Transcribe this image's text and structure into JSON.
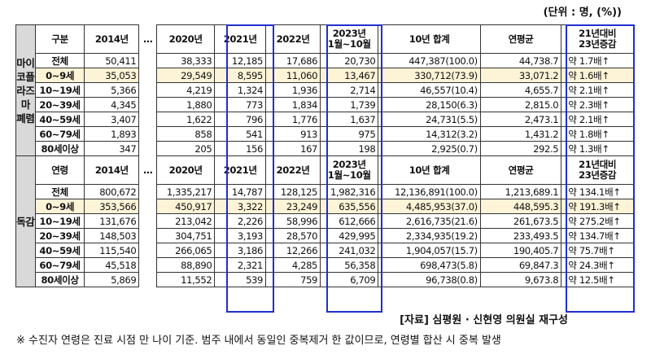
{
  "unit_note": "(단위 : 명, (%))",
  "headers": {
    "c2014": "2014년",
    "c2020": "2020년",
    "c2021": "2021년",
    "c2022": "2022년",
    "c2023_a": "2023년",
    "c2023_b": "1월~10월",
    "total": "10년 합계",
    "avg": "연평균",
    "inc_a": "21년대비",
    "inc_b": "23년증감",
    "ellipsis": "…"
  },
  "section1": {
    "side_label": "마이코플라즈마 폐렴",
    "head_label": "구분",
    "rows": [
      {
        "label": "전체",
        "v2014": "50,411",
        "v2020": "38,333",
        "v2021": "12,185",
        "v2022": "17,686",
        "v2023": "20,730",
        "total": "447,387(100.0)",
        "avg": "44,738.7",
        "inc": "약  1.7배↑"
      },
      {
        "label": "0~9세",
        "v2014": "35,053",
        "v2020": "29,549",
        "v2021": "8,595",
        "v2022": "11,060",
        "v2023": "13,467",
        "total": "330,712(73.9)",
        "avg": "33,071.2",
        "inc": "약  1.6배↑"
      },
      {
        "label": "10~19세",
        "v2014": "5,366",
        "v2020": "4,219",
        "v2021": "1,324",
        "v2022": "1,936",
        "v2023": "2,714",
        "total": "46,557(10.4)",
        "avg": "4,655.7",
        "inc": "약  2.1배↑"
      },
      {
        "label": "20~39세",
        "v2014": "4,345",
        "v2020": "1,880",
        "v2021": "773",
        "v2022": "1,834",
        "v2023": "1,739",
        "total": "28,150(6.3)",
        "avg": "2,815.0",
        "inc": "약  2.3배↑"
      },
      {
        "label": "40~59세",
        "v2014": "3,407",
        "v2020": "1,622",
        "v2021": "796",
        "v2022": "1,776",
        "v2023": "1,637",
        "total": "24,731(5.5)",
        "avg": "2,473.1",
        "inc": "약  2.1배↑"
      },
      {
        "label": "60~79세",
        "v2014": "1,893",
        "v2020": "858",
        "v2021": "541",
        "v2022": "913",
        "v2023": "975",
        "total": "14,312(3.2)",
        "avg": "1,431.2",
        "inc": "약  1.8배↑"
      },
      {
        "label": "80세이상",
        "v2014": "347",
        "v2020": "205",
        "v2021": "156",
        "v2022": "167",
        "v2023": "198",
        "total": "2,925(0.7)",
        "avg": "292.5",
        "inc": "약  1.3배↑"
      }
    ]
  },
  "section2": {
    "side_label": "독감",
    "head_label": "연령",
    "rows": [
      {
        "label": "전체",
        "v2014": "800,672",
        "v2020": "1,335,217",
        "v2021": "14,787",
        "v2022": "128,125",
        "v2023": "1,982,316",
        "total": "12,136,891(100.0)",
        "avg": "1,213,689.1",
        "inc": "약  134.1배↑"
      },
      {
        "label": "0~9세",
        "v2014": "353,566",
        "v2020": "450,917",
        "v2021": "3,322",
        "v2022": "23,249",
        "v2023": "635,556",
        "total": "4,485,953(37.0)",
        "avg": "448,595.3",
        "inc": "약  191.3배↑"
      },
      {
        "label": "10~19세",
        "v2014": "131,676",
        "v2020": "213,042",
        "v2021": "2,226",
        "v2022": "58,996",
        "v2023": "612,666",
        "total": "2,616,735(21.6)",
        "avg": "261,673.5",
        "inc": "약  275.2배↑"
      },
      {
        "label": "20~39세",
        "v2014": "148,503",
        "v2020": "304,751",
        "v2021": "3,193",
        "v2022": "28,570",
        "v2023": "429,995",
        "total": "2,334,935(19.2)",
        "avg": "233,493.5",
        "inc": "약  134.7배↑"
      },
      {
        "label": "40~59세",
        "v2014": "115,540",
        "v2020": "266,065",
        "v2021": "3,186",
        "v2022": "12,266",
        "v2023": "241,032",
        "total": "1,904,057(15.7)",
        "avg": "190,405.7",
        "inc": "약  75.7배↑"
      },
      {
        "label": "60~79세",
        "v2014": "45,518",
        "v2020": "88,890",
        "v2021": "2,321",
        "v2022": "4,285",
        "v2023": "56,358",
        "total": "698,473(5.8)",
        "avg": "69,847.3",
        "inc": "약  24.3배↑"
      },
      {
        "label": "80세이상",
        "v2014": "5,869",
        "v2020": "11,552",
        "v2021": "539",
        "v2022": "759",
        "v2023": "6,709",
        "total": "96,738(0.8)",
        "avg": "9,673.8",
        "inc": "약  12.5배↑"
      }
    ]
  },
  "source": "[자료] 심평원 · 신현영 의원실 재구성",
  "footnote": "※ 수진자 연령은 진료 시점 만 나이 기준. 범주 내에서 동일인 중복제거 한 값이므로, 연령별 합산 시 중복 발생"
}
